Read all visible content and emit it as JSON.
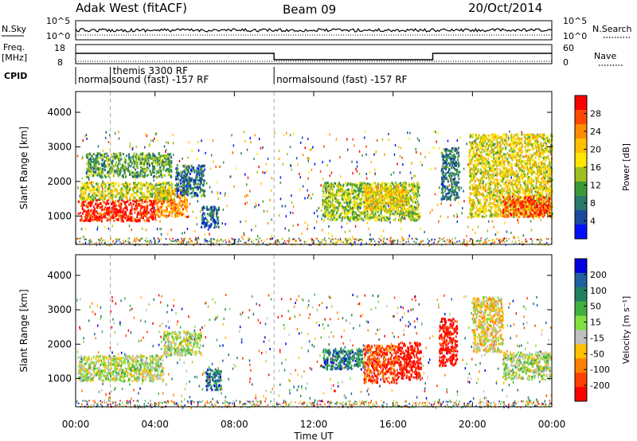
{
  "header": {
    "station": "Adak West (fitACF)",
    "beam": "Beam 09",
    "date": "20/Oct/2014"
  },
  "aux": {
    "nsky_label": "N.Sky",
    "nsearch_label": "N.Search",
    "freq_label_1": "Freq.",
    "freq_label_2": "[MHz]",
    "nave_label": "Nave",
    "cpid_label": "CPID",
    "left_ticks_nsky": [
      "10^5",
      "10^0"
    ],
    "right_ticks_nsky": [
      "10^5",
      "10^0"
    ],
    "left_ticks_freq": [
      "18",
      "8"
    ],
    "right_ticks_nave": [
      "60",
      "0"
    ],
    "cpid_entries": [
      {
        "start": 0.0,
        "text": "normalsound (fast) -157 RF"
      },
      {
        "start": 1.75,
        "text": "themis 3300 RF"
      },
      {
        "start": 10.0,
        "text": "normalsound (fast) -157 RF"
      }
    ]
  },
  "time_axis": {
    "label": "Time UT",
    "ticks": [
      "00:00",
      "04:00",
      "08:00",
      "12:00",
      "16:00",
      "20:00",
      "00:00"
    ],
    "range_hours": [
      0,
      24
    ]
  },
  "chart_data": [
    {
      "type": "heatmap",
      "title": "",
      "xlabel": "",
      "ylabel": "Slant Range [km]",
      "ylim": [
        180,
        4600
      ],
      "yticks": [
        1000,
        2000,
        3000,
        4000
      ],
      "colorbar": {
        "label": "Power [dB]",
        "ticks": [
          "28",
          "24",
          "20",
          "16",
          "12",
          "8",
          "4"
        ],
        "colors": [
          "#ff0000",
          "#ff4800",
          "#ff8c00",
          "#ffc000",
          "#ffe700",
          "#a0c020",
          "#3a9a3a",
          "#2a7a6a",
          "#1a4aa0",
          "#0010ff"
        ]
      },
      "regions": [
        {
          "t0": 0.1,
          "t1": 4.0,
          "r0": 880,
          "r1": 1500,
          "level": 0.92
        },
        {
          "t0": 4.0,
          "t1": 5.6,
          "r0": 1000,
          "r1": 1800,
          "level": 0.75
        },
        {
          "t0": 0.2,
          "t1": 5.0,
          "r0": 1500,
          "r1": 2000,
          "level": 0.5
        },
        {
          "t0": 0.5,
          "t1": 4.8,
          "r0": 2150,
          "r1": 2850,
          "level": 0.35
        },
        {
          "t0": 5.0,
          "t1": 6.5,
          "r0": 1600,
          "r1": 2500,
          "level": 0.25
        },
        {
          "t0": 6.3,
          "t1": 7.2,
          "r0": 700,
          "r1": 1300,
          "level": 0.2
        },
        {
          "t0": 12.4,
          "t1": 17.3,
          "r0": 900,
          "r1": 2000,
          "level": 0.45
        },
        {
          "t0": 14.5,
          "t1": 16.7,
          "r0": 1200,
          "r1": 1900,
          "level": 0.6
        },
        {
          "t0": 18.4,
          "t1": 19.3,
          "r0": 1500,
          "r1": 3000,
          "level": 0.25
        },
        {
          "t0": 19.8,
          "t1": 24.0,
          "r0": 1000,
          "r1": 3400,
          "level": 0.55
        },
        {
          "t0": 21.5,
          "t1": 23.9,
          "r0": 1000,
          "r1": 1600,
          "level": 0.85
        }
      ]
    },
    {
      "type": "heatmap",
      "title": "",
      "xlabel": "Time UT",
      "ylabel": "Slant Range [km]",
      "ylim": [
        180,
        4600
      ],
      "yticks": [
        1000,
        2000,
        3000,
        4000
      ],
      "colorbar": {
        "label": "Velocity [m s⁻¹]",
        "ticks": [
          "200",
          "100",
          "50",
          "15",
          "-15",
          "-50",
          "-100",
          "-200"
        ],
        "colors": [
          "#0000e0",
          "#2060a0",
          "#208060",
          "#40b040",
          "#80e040",
          "#c0c0c0",
          "#ffc000",
          "#ff8000",
          "#ff4000",
          "#ff0000"
        ]
      },
      "regions": [
        {
          "t0": 0.1,
          "t1": 4.4,
          "r0": 950,
          "r1": 1700,
          "level": 0.5
        },
        {
          "t0": 4.4,
          "t1": 6.3,
          "r0": 1700,
          "r1": 2400,
          "level": 0.5
        },
        {
          "t0": 6.5,
          "t1": 7.3,
          "r0": 700,
          "r1": 1300,
          "level": 0.8
        },
        {
          "t0": 12.4,
          "t1": 14.5,
          "r0": 1300,
          "r1": 1900,
          "level": 0.78
        },
        {
          "t0": 14.5,
          "t1": 16.2,
          "r0": 900,
          "r1": 2000,
          "level": 0.15
        },
        {
          "t0": 16.2,
          "t1": 17.4,
          "r0": 1000,
          "r1": 2100,
          "level": 0.02
        },
        {
          "t0": 18.3,
          "t1": 19.2,
          "r0": 1400,
          "r1": 2800,
          "level": 0.03
        },
        {
          "t0": 20.0,
          "t1": 21.5,
          "r0": 1800,
          "r1": 3400,
          "level": 0.4
        },
        {
          "t0": 21.5,
          "t1": 23.9,
          "r0": 1000,
          "r1": 1800,
          "level": 0.5
        }
      ]
    }
  ]
}
